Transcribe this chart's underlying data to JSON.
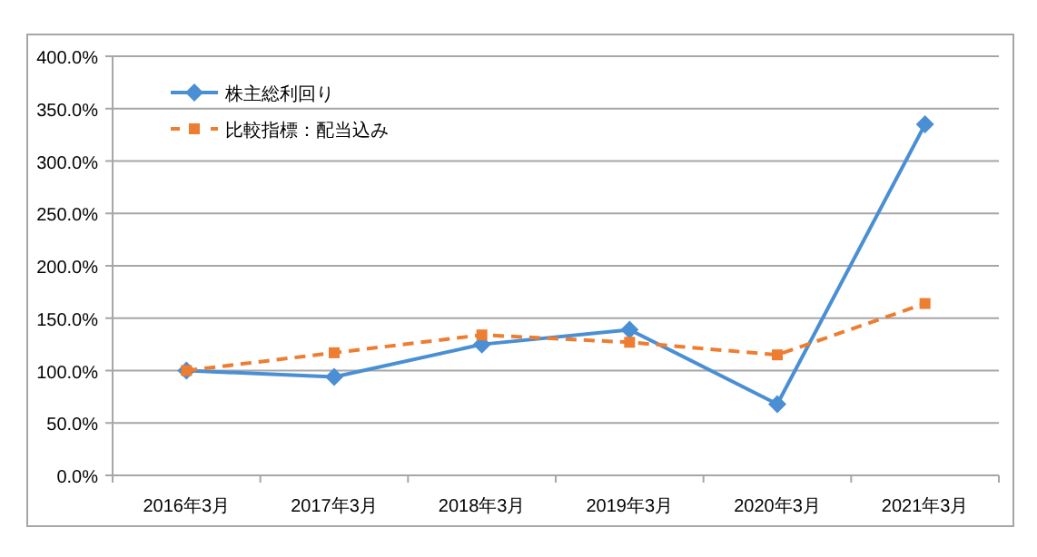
{
  "chart_data": {
    "type": "line",
    "categories": [
      "2016年3月",
      "2017年3月",
      "2018年3月",
      "2019年3月",
      "2020年3月",
      "2021年3月"
    ],
    "series": [
      {
        "name": "株主総利回り",
        "color": "#4a8fd4",
        "values": [
          100,
          94,
          125,
          139,
          68,
          335
        ],
        "marker": "diamond",
        "line_style": "solid"
      },
      {
        "name": "比較指標：配当込み",
        "color": "#ed7d31",
        "values": [
          100,
          117,
          134,
          127,
          115,
          164
        ],
        "marker": "square",
        "line_style": "dashed"
      }
    ],
    "ylim": [
      0,
      400
    ],
    "yticks": [
      {
        "value": 0,
        "label": "0.0%"
      },
      {
        "value": 50,
        "label": "50.0%"
      },
      {
        "value": 100,
        "label": "100.0%"
      },
      {
        "value": 150,
        "label": "150.0%"
      },
      {
        "value": 200,
        "label": "200.0%"
      },
      {
        "value": 250,
        "label": "250.0%"
      },
      {
        "value": 300,
        "label": "300.0%"
      },
      {
        "value": 350,
        "label": "350.0%"
      },
      {
        "value": 400,
        "label": "400.0%"
      }
    ],
    "grid": "y",
    "legend": "top left"
  }
}
